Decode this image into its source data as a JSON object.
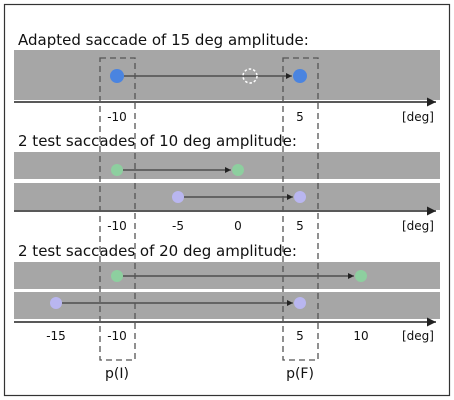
{
  "sections": [
    {
      "id": "adapted",
      "heading": "Adapted saccade of 15 deg amplitude:",
      "unit": "[deg]",
      "tick_labels": [
        "-10",
        "5"
      ],
      "saccades": [
        {
          "from_deg": -10,
          "to_deg": 5,
          "color": "#4a84e0",
          "target_marker": "dashed-circle",
          "target_deg": 0
        }
      ]
    },
    {
      "id": "test-10",
      "heading": "2 test saccades of 10 deg amplitude:",
      "unit": "[deg]",
      "tick_labels": [
        "-10",
        "-5",
        "0",
        "5"
      ],
      "saccades": [
        {
          "from_deg": -10,
          "to_deg": 0,
          "color": "#8dcf9f"
        },
        {
          "from_deg": -5,
          "to_deg": 5,
          "color": "#b9b6f0"
        }
      ]
    },
    {
      "id": "test-20",
      "heading": "2 test saccades of 20 deg amplitude:",
      "unit": "[deg]",
      "tick_labels": [
        "-15",
        "-10",
        "5",
        "10"
      ],
      "saccades": [
        {
          "from_deg": -10,
          "to_deg": 10,
          "color": "#8dcf9f"
        },
        {
          "from_deg": -15,
          "to_deg": 5,
          "color": "#b9b6f0"
        }
      ]
    }
  ],
  "regions": [
    {
      "name": "initial",
      "label": "p(I)",
      "center_deg": -10
    },
    {
      "name": "final",
      "label": "p(F)",
      "center_deg": 5
    }
  ],
  "colors": {
    "track": "#a6a6a6",
    "axis": "#222222",
    "frame": "#333333",
    "dash": "#555555",
    "arrow": "#222222",
    "adapted_dot": "#4a84e0",
    "green_dot": "#8dcf9f",
    "violet_dot": "#b9b6f0"
  }
}
